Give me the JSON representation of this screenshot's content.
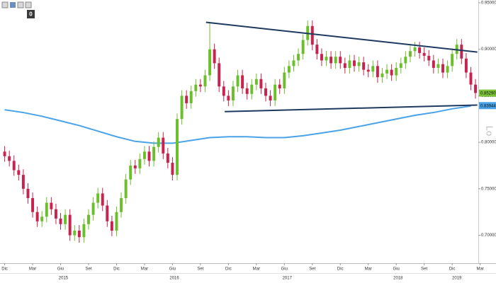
{
  "toolbar_badge": "0",
  "chart_data": {
    "type": "candlestick",
    "up_color": "#6cbf2c",
    "down_color": "#c8234f",
    "xlim": [
      -0.5,
      50.8
    ],
    "ylim": [
      0.67,
      0.953
    ],
    "yticks": [
      {
        "value": 0.7,
        "label": "0.70000"
      },
      {
        "value": 0.75,
        "label": "0.75000"
      },
      {
        "value": 0.8,
        "label": "0.80000"
      },
      {
        "value": 0.85,
        "label": "0.85000"
      },
      {
        "value": 0.9,
        "label": "0.90000"
      },
      {
        "value": 0.95,
        "label": "0.95000"
      }
    ],
    "xticks": [
      {
        "value": 0,
        "label": "Dic"
      },
      {
        "value": 3,
        "label": "Mar"
      },
      {
        "value": 6,
        "label": "Giu"
      },
      {
        "value": 9,
        "label": "Set"
      },
      {
        "value": 12,
        "label": "Dic"
      },
      {
        "value": 15,
        "label": "Mar"
      },
      {
        "value": 18,
        "label": "Giu"
      },
      {
        "value": 21,
        "label": "Set"
      },
      {
        "value": 24,
        "label": "Dic"
      },
      {
        "value": 27,
        "label": "Mar"
      },
      {
        "value": 30,
        "label": "Giu"
      },
      {
        "value": 33,
        "label": "Set"
      },
      {
        "value": 36,
        "label": "Dic"
      },
      {
        "value": 39,
        "label": "Mar"
      },
      {
        "value": 42,
        "label": "Giu"
      },
      {
        "value": 45,
        "label": "Set"
      },
      {
        "value": 48,
        "label": "Dic"
      },
      {
        "value": 51,
        "label": "Mar"
      }
    ],
    "year_ticks": [
      {
        "value": 6.3,
        "label": "2015"
      },
      {
        "value": 18.2,
        "label": "2016"
      },
      {
        "value": 30.3,
        "label": "2017"
      },
      {
        "value": 42.2,
        "label": "2018"
      },
      {
        "value": 48.5,
        "label": "2019"
      }
    ],
    "x": [
      0,
      0.5,
      1,
      1.5,
      2,
      2.5,
      3,
      3.5,
      4,
      4.5,
      5,
      5.5,
      6,
      6.5,
      7,
      7.5,
      8,
      8.5,
      9,
      9.5,
      10,
      10.5,
      11,
      11.5,
      12,
      12.5,
      13,
      13.5,
      14,
      14.5,
      15,
      15.5,
      16,
      16.5,
      17,
      17.5,
      18,
      18.5,
      19,
      19.5,
      20,
      20.5,
      21,
      21.5,
      22,
      22.5,
      23,
      23.5,
      24,
      24.5,
      25,
      25.5,
      26,
      26.5,
      27,
      27.5,
      28,
      28.5,
      29,
      29.5,
      30,
      30.5,
      31,
      31.5,
      32,
      32.5,
      33,
      33.5,
      34,
      34.5,
      35,
      35.5,
      36,
      36.5,
      37,
      37.5,
      38,
      38.5,
      39,
      39.5,
      40,
      40.5,
      41,
      41.5,
      42,
      42.5,
      43,
      43.5,
      44,
      44.5,
      45,
      45.5,
      46,
      46.5,
      47,
      47.5,
      48,
      48.5,
      49,
      49.5,
      50,
      50.5
    ],
    "open": [
      0.79,
      0.785,
      0.78,
      0.77,
      0.765,
      0.75,
      0.74,
      0.725,
      0.715,
      0.72,
      0.735,
      0.728,
      0.718,
      0.712,
      0.722,
      0.7,
      0.705,
      0.698,
      0.712,
      0.722,
      0.735,
      0.745,
      0.732,
      0.715,
      0.705,
      0.725,
      0.74,
      0.76,
      0.775,
      0.772,
      0.782,
      0.79,
      0.78,
      0.795,
      0.805,
      0.788,
      0.778,
      0.765,
      0.825,
      0.85,
      0.842,
      0.855,
      0.862,
      0.86,
      0.872,
      0.9,
      0.885,
      0.86,
      0.85,
      0.845,
      0.86,
      0.872,
      0.858,
      0.852,
      0.862,
      0.868,
      0.858,
      0.85,
      0.845,
      0.862,
      0.858,
      0.875,
      0.882,
      0.888,
      0.895,
      0.91,
      0.925,
      0.905,
      0.895,
      0.888,
      0.892,
      0.885,
      0.892,
      0.885,
      0.88,
      0.888,
      0.882,
      0.886,
      0.878,
      0.876,
      0.882,
      0.87,
      0.874,
      0.878,
      0.872,
      0.88,
      0.885,
      0.892,
      0.898,
      0.902,
      0.896,
      0.893,
      0.888,
      0.88,
      0.884,
      0.875,
      0.882,
      0.895,
      0.905,
      0.89,
      0.875,
      0.862
    ],
    "high": [
      0.796,
      0.791,
      0.786,
      0.776,
      0.771,
      0.756,
      0.746,
      0.731,
      0.726,
      0.741,
      0.741,
      0.734,
      0.724,
      0.728,
      0.728,
      0.711,
      0.711,
      0.718,
      0.728,
      0.741,
      0.751,
      0.751,
      0.738,
      0.721,
      0.731,
      0.746,
      0.766,
      0.781,
      0.781,
      0.788,
      0.796,
      0.796,
      0.801,
      0.811,
      0.811,
      0.794,
      0.784,
      0.831,
      0.856,
      0.856,
      0.861,
      0.868,
      0.868,
      0.878,
      0.928,
      0.906,
      0.891,
      0.866,
      0.856,
      0.866,
      0.878,
      0.878,
      0.864,
      0.868,
      0.874,
      0.874,
      0.864,
      0.856,
      0.868,
      0.868,
      0.881,
      0.888,
      0.894,
      0.901,
      0.916,
      0.931,
      0.931,
      0.911,
      0.901,
      0.898,
      0.898,
      0.898,
      0.898,
      0.891,
      0.894,
      0.894,
      0.892,
      0.892,
      0.884,
      0.888,
      0.888,
      0.88,
      0.884,
      0.884,
      0.886,
      0.891,
      0.898,
      0.904,
      0.908,
      0.908,
      0.902,
      0.899,
      0.894,
      0.89,
      0.89,
      0.888,
      0.901,
      0.911,
      0.911,
      0.896,
      0.881,
      0.868
    ],
    "low": [
      0.779,
      0.774,
      0.764,
      0.759,
      0.744,
      0.734,
      0.719,
      0.709,
      0.709,
      0.714,
      0.722,
      0.712,
      0.706,
      0.706,
      0.694,
      0.694,
      0.692,
      0.692,
      0.706,
      0.716,
      0.729,
      0.726,
      0.709,
      0.699,
      0.699,
      0.719,
      0.734,
      0.754,
      0.766,
      0.766,
      0.776,
      0.774,
      0.774,
      0.789,
      0.782,
      0.772,
      0.759,
      0.759,
      0.819,
      0.836,
      0.836,
      0.849,
      0.854,
      0.854,
      0.866,
      0.879,
      0.854,
      0.844,
      0.839,
      0.839,
      0.854,
      0.852,
      0.846,
      0.846,
      0.856,
      0.852,
      0.844,
      0.839,
      0.839,
      0.852,
      0.852,
      0.869,
      0.876,
      0.882,
      0.889,
      0.904,
      0.899,
      0.889,
      0.882,
      0.882,
      0.879,
      0.879,
      0.879,
      0.874,
      0.874,
      0.876,
      0.876,
      0.872,
      0.87,
      0.87,
      0.864,
      0.864,
      0.868,
      0.866,
      0.866,
      0.874,
      0.879,
      0.886,
      0.892,
      0.89,
      0.887,
      0.882,
      0.874,
      0.874,
      0.869,
      0.869,
      0.876,
      0.889,
      0.884,
      0.869,
      0.856,
      0.847
    ],
    "close": [
      0.785,
      0.78,
      0.77,
      0.765,
      0.75,
      0.74,
      0.725,
      0.715,
      0.72,
      0.735,
      0.728,
      0.718,
      0.712,
      0.722,
      0.7,
      0.705,
      0.698,
      0.712,
      0.722,
      0.735,
      0.745,
      0.732,
      0.715,
      0.705,
      0.725,
      0.74,
      0.76,
      0.775,
      0.772,
      0.782,
      0.79,
      0.78,
      0.795,
      0.805,
      0.788,
      0.778,
      0.765,
      0.825,
      0.85,
      0.842,
      0.855,
      0.862,
      0.86,
      0.872,
      0.9,
      0.885,
      0.86,
      0.85,
      0.845,
      0.86,
      0.872,
      0.858,
      0.852,
      0.862,
      0.868,
      0.858,
      0.85,
      0.845,
      0.862,
      0.858,
      0.875,
      0.882,
      0.888,
      0.895,
      0.91,
      0.925,
      0.905,
      0.895,
      0.888,
      0.892,
      0.885,
      0.892,
      0.885,
      0.88,
      0.888,
      0.882,
      0.886,
      0.878,
      0.876,
      0.882,
      0.87,
      0.874,
      0.878,
      0.872,
      0.88,
      0.885,
      0.892,
      0.898,
      0.902,
      0.896,
      0.893,
      0.888,
      0.88,
      0.884,
      0.875,
      0.882,
      0.895,
      0.905,
      0.89,
      0.875,
      0.862,
      0.853
    ],
    "moving_average": {
      "color": "#4aa3e8",
      "x": [
        0,
        2,
        4,
        6,
        8,
        10,
        12,
        14,
        16,
        18,
        20,
        22,
        24,
        26,
        28,
        30,
        32,
        34,
        36,
        38,
        40,
        42,
        44,
        46,
        48,
        50
      ],
      "values": [
        0.835,
        0.832,
        0.828,
        0.823,
        0.818,
        0.812,
        0.806,
        0.801,
        0.799,
        0.799,
        0.802,
        0.805,
        0.806,
        0.806,
        0.805,
        0.805,
        0.807,
        0.81,
        0.813,
        0.817,
        0.821,
        0.825,
        0.829,
        0.832,
        0.836,
        0.839
      ]
    },
    "trendlines": {
      "color": "#1f3a5f",
      "lines": [
        {
          "x": [
            21.6,
            50.7
          ],
          "values": [
            0.929,
            0.897
          ]
        },
        {
          "x": [
            23.6,
            50.7
          ],
          "values": [
            0.833,
            0.84
          ]
        }
      ]
    },
    "price_labels": [
      {
        "value": 0.8529,
        "label": "0.85290",
        "color": "#7cc33a"
      },
      {
        "value": 0.83944,
        "label": "0.83944",
        "color": "#4aa3e8"
      }
    ],
    "watermark": "Lo"
  }
}
